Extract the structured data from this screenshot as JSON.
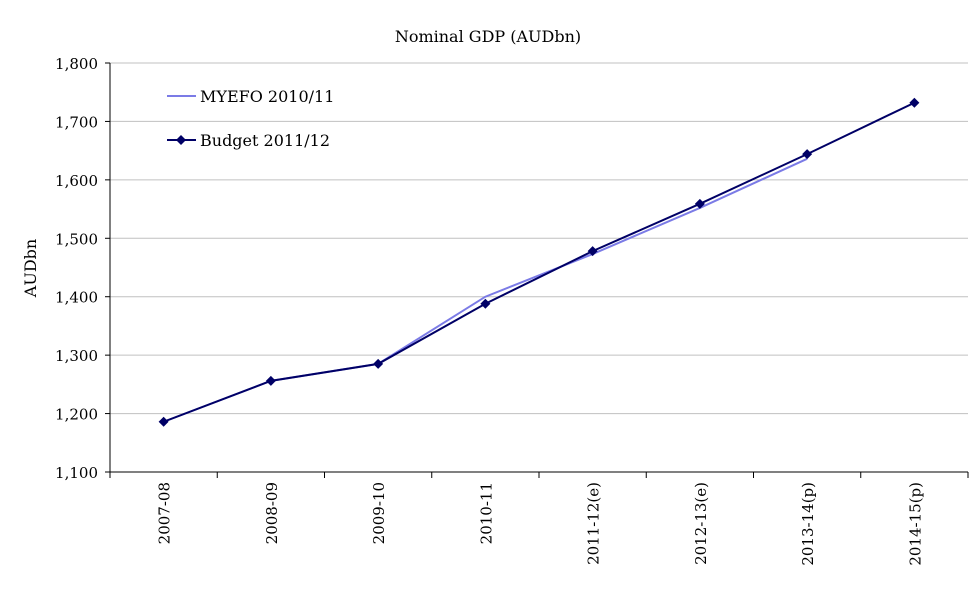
{
  "chart_data": {
    "type": "line",
    "title": "Nominal GDP (AUDbn)",
    "xlabel": "",
    "ylabel": "AUDbn",
    "ylim": [
      1100,
      1800
    ],
    "yticks": [
      1100,
      1200,
      1300,
      1400,
      1500,
      1600,
      1700,
      1800
    ],
    "ytick_labels": [
      "1,100",
      "1,200",
      "1,300",
      "1,400",
      "1,500",
      "1,600",
      "1,700",
      "1,800"
    ],
    "grid": true,
    "legend_position": "top-left",
    "categories": [
      "2007-08",
      "2008-09",
      "2009-10",
      "2010-11",
      "2011-12(e)",
      "2012-13(e)",
      "2013-14(p)",
      "2014-15(p)"
    ],
    "series": [
      {
        "name": "MYEFO 2010/11",
        "color": "#7b7be6",
        "marker": "none",
        "values": [
          1186,
          1256,
          1285,
          1400,
          1473,
          1552,
          1636,
          null
        ]
      },
      {
        "name": "Budget 2011/12",
        "color": "#000066",
        "marker": "diamond",
        "values": [
          1186,
          1256,
          1285,
          1388,
          1478,
          1559,
          1644,
          1732
        ]
      }
    ]
  }
}
